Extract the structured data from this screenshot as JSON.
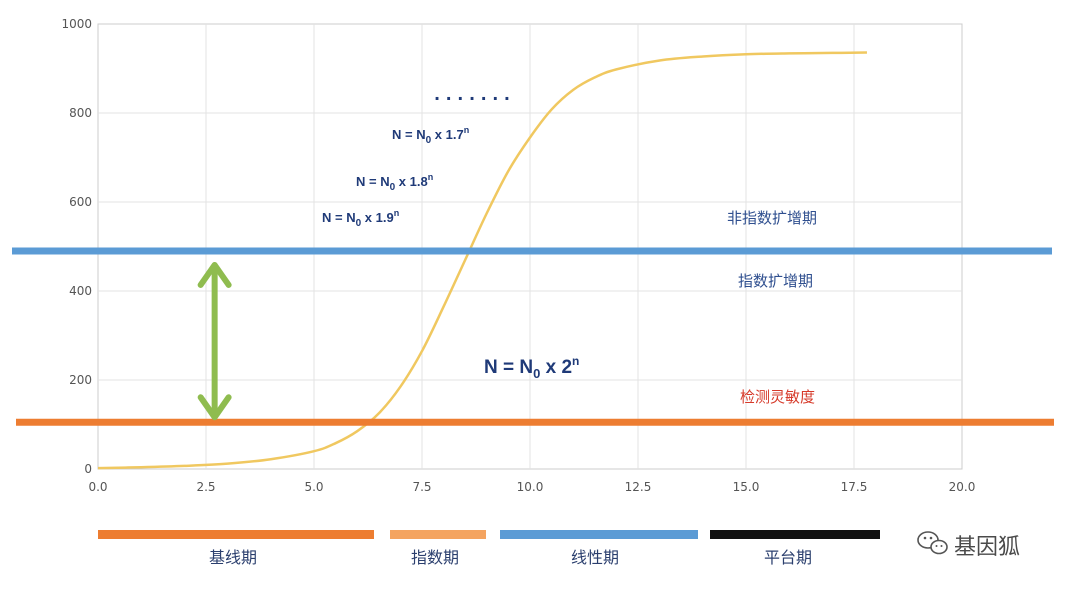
{
  "chart_data": {
    "type": "line",
    "title": "",
    "xlabel": "",
    "ylabel": "",
    "xlim": [
      0,
      20
    ],
    "ylim": [
      0,
      1000
    ],
    "grid": true,
    "x_ticks": [
      "0.0",
      "2.5",
      "5.0",
      "7.5",
      "10.0",
      "12.5",
      "15.0",
      "17.5",
      "20.0"
    ],
    "y_ticks": [
      "0",
      "200",
      "400",
      "600",
      "800",
      "1000"
    ],
    "series": [
      {
        "color": "#f0c860",
        "x": [
          0,
          1,
          2,
          3,
          4,
          5,
          5.5,
          6,
          6.5,
          7,
          7.5,
          8,
          8.5,
          9,
          9.5,
          10,
          10.5,
          11,
          11.5,
          12,
          13,
          14,
          15,
          16,
          17,
          17.8
        ],
        "y": [
          2,
          4,
          7,
          12,
          22,
          40,
          58,
          85,
          125,
          185,
          265,
          365,
          470,
          575,
          670,
          745,
          808,
          852,
          880,
          898,
          918,
          927,
          932,
          934,
          935,
          936
        ]
      }
    ],
    "threshold_lines": [
      {
        "y": 490,
        "color": "#5b9bd5",
        "label": "非指数扩增期",
        "label_color": "#2f4f8f"
      },
      {
        "y": 105,
        "color": "#ed7d31",
        "label": "检测灵敏度",
        "label_color": "#d63a2a"
      }
    ],
    "zone_labels": [
      {
        "text": "指数扩增期",
        "color": "#2f4f8f"
      }
    ],
    "arrow": {
      "color": "#8fbc4f",
      "x": 2.7,
      "y_from": 105,
      "y_to": 490
    },
    "formulas": [
      {
        "text": "N = N",
        "sub": "0",
        "rest": " x 2",
        "sup": "n"
      },
      {
        "text": "N = N",
        "sub": "0",
        "rest": " x 1.9",
        "sup": "n"
      },
      {
        "text": "N = N",
        "sub": "0",
        "rest": " x 1.8",
        "sup": "n"
      },
      {
        "text": "N = N",
        "sub": "0",
        "rest": " x 1.7",
        "sup": "n"
      }
    ],
    "ellipsis": ". . . . . . .",
    "phases": [
      {
        "label": "基线期",
        "color": "#ed7d31"
      },
      {
        "label": "指数期",
        "color": "#f4a460"
      },
      {
        "label": "线性期",
        "color": "#5b9bd5"
      },
      {
        "label": "平台期",
        "color": "#111111"
      }
    ]
  },
  "logo": {
    "text": "基因狐",
    "icon": "wechat-icon"
  }
}
